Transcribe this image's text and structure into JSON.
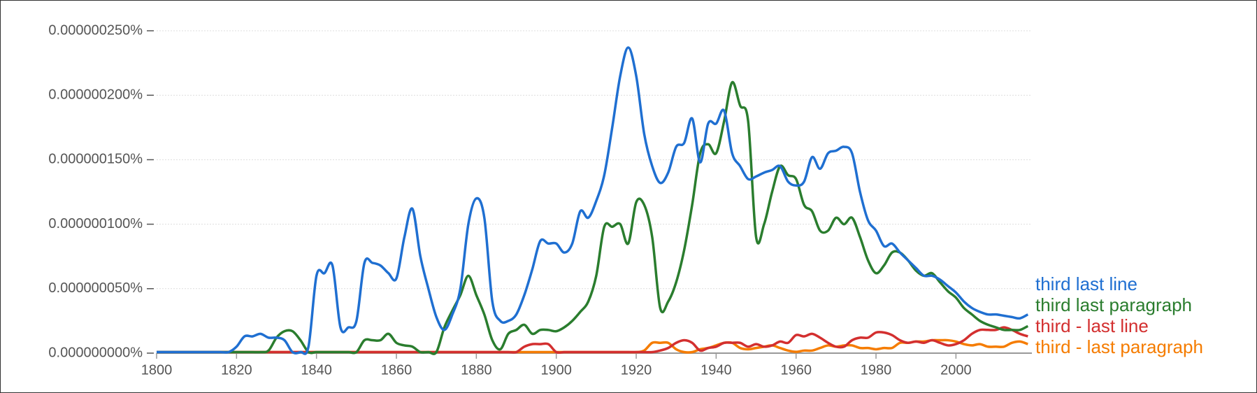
{
  "chart_data": {
    "type": "line",
    "x": [
      1800,
      1802,
      1804,
      1806,
      1808,
      1810,
      1812,
      1814,
      1816,
      1818,
      1820,
      1822,
      1824,
      1826,
      1828,
      1830,
      1832,
      1834,
      1836,
      1838,
      1840,
      1842,
      1844,
      1846,
      1848,
      1850,
      1852,
      1854,
      1856,
      1858,
      1860,
      1862,
      1864,
      1866,
      1868,
      1870,
      1872,
      1874,
      1876,
      1878,
      1880,
      1882,
      1884,
      1886,
      1888,
      1890,
      1892,
      1894,
      1896,
      1898,
      1900,
      1902,
      1904,
      1906,
      1908,
      1910,
      1912,
      1914,
      1916,
      1918,
      1920,
      1922,
      1924,
      1926,
      1928,
      1930,
      1932,
      1934,
      1936,
      1938,
      1940,
      1942,
      1944,
      1946,
      1948,
      1950,
      1952,
      1954,
      1956,
      1958,
      1960,
      1962,
      1964,
      1966,
      1968,
      1970,
      1972,
      1974,
      1976,
      1978,
      1980,
      1982,
      1984,
      1986,
      1988,
      1990,
      1992,
      1994,
      1996,
      1998,
      2000,
      2002,
      2004,
      2006,
      2008,
      2010,
      2012,
      2014,
      2016,
      2018
    ],
    "xlim": [
      1800,
      2019
    ],
    "xticks": [
      1800,
      1820,
      1840,
      1860,
      1880,
      1900,
      1920,
      1940,
      1960,
      1980,
      2000
    ],
    "ylim": [
      0,
      2.5e-07
    ],
    "yticks": [
      {
        "value": 0,
        "label": "0.000000000%"
      },
      {
        "value": 5e-08,
        "label": "0.000000050%"
      },
      {
        "value": 1e-07,
        "label": "0.000000100%"
      },
      {
        "value": 1.5e-07,
        "label": "0.000000150%"
      },
      {
        "value": 2e-07,
        "label": "0.000000200%"
      },
      {
        "value": 2.5e-07,
        "label": "0.000000250%"
      }
    ],
    "grid": true,
    "series": [
      {
        "name": "third last line",
        "color": "#1f6fd1",
        "values": [
          0,
          0,
          0,
          0,
          0,
          0,
          0,
          0,
          0,
          0,
          5e-09,
          1.3e-08,
          1.3e-08,
          1.5e-08,
          1.2e-08,
          1.2e-08,
          1e-08,
          0,
          0,
          5e-09,
          6e-08,
          6.2e-08,
          6.8e-08,
          2e-08,
          2e-08,
          2.5e-08,
          7e-08,
          7e-08,
          6.8e-08,
          6.2e-08,
          5.8e-08,
          9e-08,
          1.12e-07,
          7.5e-08,
          5e-08,
          2.8e-08,
          1.8e-08,
          3e-08,
          5e-08,
          1e-07,
          1.2e-07,
          1.05e-07,
          4e-08,
          2.5e-08,
          2.5e-08,
          3e-08,
          4.5e-08,
          6.5e-08,
          8.7e-08,
          8.5e-08,
          8.5e-08,
          7.8e-08,
          8.5e-08,
          1.1e-07,
          1.05e-07,
          1.18e-07,
          1.38e-07,
          1.75e-07,
          2.15e-07,
          2.37e-07,
          2.15e-07,
          1.7e-07,
          1.45e-07,
          1.32e-07,
          1.4e-07,
          1.6e-07,
          1.63e-07,
          1.82e-07,
          1.48e-07,
          1.78e-07,
          1.78e-07,
          1.88e-07,
          1.55e-07,
          1.45e-07,
          1.35e-07,
          1.37e-07,
          1.4e-07,
          1.42e-07,
          1.45e-07,
          1.33e-07,
          1.3e-07,
          1.33e-07,
          1.52e-07,
          1.43e-07,
          1.55e-07,
          1.57e-07,
          1.6e-07,
          1.55e-07,
          1.25e-07,
          1.03e-07,
          9.5e-08,
          8.3e-08,
          8.5e-08,
          7.8e-08,
          7.2e-08,
          6.6e-08,
          6e-08,
          6e-08,
          5.7e-08,
          5.2e-08,
          4.7e-08,
          4e-08,
          3.5e-08,
          3.2e-08,
          3e-08,
          3e-08,
          2.9e-08,
          2.8e-08,
          2.7e-08,
          3e-08
        ]
      },
      {
        "name": "third last paragraph",
        "color": "#2a7d2e",
        "values": [
          0,
          0,
          0,
          0,
          0,
          0,
          0,
          0,
          0,
          0,
          0,
          0,
          0,
          0,
          2e-09,
          1.2e-08,
          1.7e-08,
          1.7e-08,
          1e-08,
          0,
          0,
          0,
          0,
          0,
          0,
          0,
          1e-08,
          1e-08,
          1e-08,
          1.5e-08,
          8e-09,
          6e-09,
          5e-09,
          0,
          0,
          0,
          2e-08,
          3.3e-08,
          4.5e-08,
          6e-08,
          4.5e-08,
          3e-08,
          1e-08,
          3e-09,
          1.5e-08,
          1.8e-08,
          2.2e-08,
          1.5e-08,
          1.8e-08,
          1.8e-08,
          1.7e-08,
          2e-08,
          2.5e-08,
          3.2e-08,
          4e-08,
          6e-08,
          9.8e-08,
          9.8e-08,
          1e-07,
          8.5e-08,
          1.17e-07,
          1.15e-07,
          9e-08,
          3.5e-08,
          4e-08,
          5.5e-08,
          8e-08,
          1.15e-07,
          1.55e-07,
          1.62e-07,
          1.55e-07,
          1.8e-07,
          2.1e-07,
          1.92e-07,
          1.8e-07,
          9e-08,
          1e-07,
          1.25e-07,
          1.45e-07,
          1.38e-07,
          1.35e-07,
          1.15e-07,
          1.1e-07,
          9.5e-08,
          9.5e-08,
          1.05e-07,
          1e-07,
          1.05e-07,
          9e-08,
          7.2e-08,
          6.2e-08,
          6.8e-08,
          7.8e-08,
          7.8e-08,
          7.2e-08,
          6.4e-08,
          6e-08,
          6.2e-08,
          5.5e-08,
          4.8e-08,
          4.3e-08,
          3.5e-08,
          3e-08,
          2.5e-08,
          2.2e-08,
          2e-08,
          1.8e-08,
          1.8e-08,
          1.8e-08,
          2.1e-08
        ]
      },
      {
        "name": "third - last line",
        "color": "#d32f2f",
        "values": [
          0,
          0,
          0,
          0,
          0,
          0,
          0,
          0,
          0,
          0,
          0,
          0,
          0,
          0,
          0,
          0,
          0,
          0,
          0,
          0,
          0,
          0,
          0,
          0,
          0,
          0,
          0,
          0,
          0,
          0,
          0,
          0,
          0,
          0,
          0,
          0,
          0,
          0,
          0,
          0,
          0,
          0,
          0,
          0,
          0,
          0,
          5e-09,
          7e-09,
          7e-09,
          7e-09,
          0,
          0,
          0,
          0,
          0,
          0,
          0,
          0,
          0,
          0,
          0,
          0,
          0,
          2e-09,
          4e-09,
          8e-09,
          1e-08,
          8e-09,
          2e-09,
          4e-09,
          5e-09,
          8e-09,
          8e-09,
          8e-09,
          5e-09,
          7e-09,
          5e-09,
          6e-09,
          9e-09,
          8e-09,
          1.4e-08,
          1.3e-08,
          1.5e-08,
          1.2e-08,
          8e-09,
          5e-09,
          5e-09,
          1e-08,
          1.2e-08,
          1.2e-08,
          1.6e-08,
          1.6e-08,
          1.4e-08,
          1e-08,
          8e-09,
          9e-09,
          8e-09,
          1e-08,
          8e-09,
          6e-09,
          7e-09,
          1e-08,
          1.5e-08,
          1.8e-08,
          1.8e-08,
          1.8e-08,
          2e-08,
          1.8e-08,
          1.5e-08,
          1.3e-08
        ]
      },
      {
        "name": "third - last paragraph",
        "color": "#f57c00",
        "values": [
          0,
          0,
          0,
          0,
          0,
          0,
          0,
          0,
          0,
          0,
          0,
          0,
          0,
          0,
          0,
          0,
          0,
          0,
          0,
          0,
          0,
          0,
          0,
          0,
          0,
          0,
          0,
          0,
          0,
          0,
          0,
          0,
          0,
          0,
          0,
          0,
          0,
          0,
          0,
          0,
          0,
          0,
          0,
          0,
          0,
          0,
          0,
          0,
          0,
          0,
          0,
          0,
          0,
          0,
          0,
          0,
          0,
          0,
          0,
          0,
          0,
          2e-09,
          8e-09,
          8e-09,
          8e-09,
          3e-09,
          0,
          0,
          3e-09,
          4e-09,
          6e-09,
          8e-09,
          8e-09,
          4e-09,
          3e-09,
          4e-09,
          5e-09,
          6e-09,
          4e-09,
          2e-09,
          1e-09,
          2e-09,
          2e-09,
          4e-09,
          6e-09,
          5e-09,
          6e-09,
          6e-09,
          4e-09,
          4e-09,
          3e-09,
          4e-09,
          4e-09,
          8e-09,
          8e-09,
          9e-09,
          9e-09,
          1e-08,
          1e-08,
          1e-08,
          9e-09,
          7e-09,
          6e-09,
          7e-09,
          5e-09,
          5e-09,
          5e-09,
          8e-09,
          9e-09,
          7e-09
        ]
      }
    ]
  }
}
